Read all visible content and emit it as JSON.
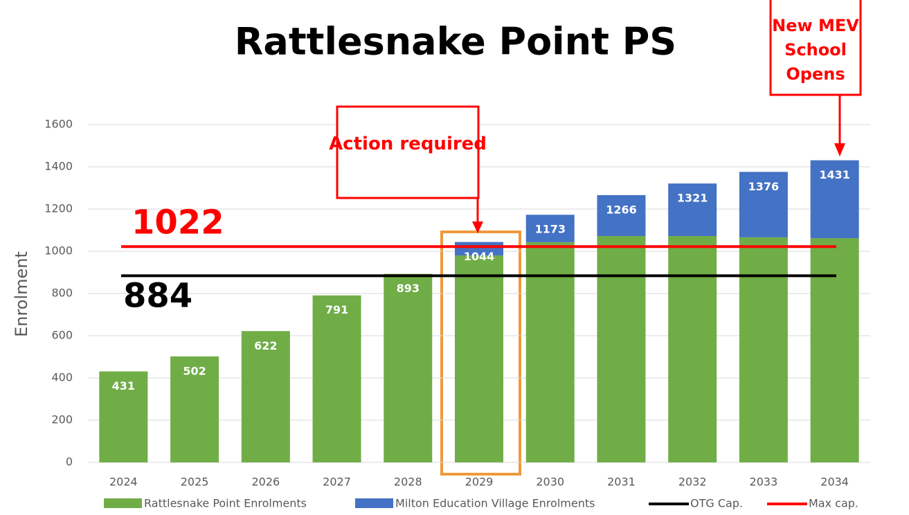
{
  "chart_data": {
    "type": "stacked_bar",
    "title": "Rattlesnake Point PS",
    "y_label": "Enrolment",
    "categories": [
      "2024",
      "2025",
      "2026",
      "2027",
      "2028",
      "2029",
      "2030",
      "2031",
      "2032",
      "2033",
      "2034"
    ],
    "series": [
      {
        "name": "Rattlesnake Point Enrolments",
        "color": "#70ad47",
        "values": [
          431,
          502,
          622,
          791,
          893,
          980,
          1043,
          1072,
          1072,
          1066,
          1062
        ]
      },
      {
        "name": "Milton Education Village Enrolments",
        "color": "#4472c4",
        "values": [
          0,
          0,
          0,
          0,
          0,
          64,
          130,
          194,
          249,
          310,
          369
        ]
      }
    ],
    "totals": [
      431,
      502,
      622,
      791,
      893,
      1044,
      1173,
      1266,
      1321,
      1376,
      1431
    ],
    "lines": [
      {
        "name": "OTG Cap.",
        "color": "#000000",
        "value": 884
      },
      {
        "name": "Max cap.",
        "color": "#ff0000",
        "value": 1022
      }
    ],
    "annotations": [
      "Action required",
      "New MEV School Opens"
    ],
    "ylim": [
      0,
      1600
    ],
    "yticks": [
      0,
      200,
      400,
      600,
      800,
      1000,
      1200,
      1400,
      1600
    ],
    "grid": true
  }
}
